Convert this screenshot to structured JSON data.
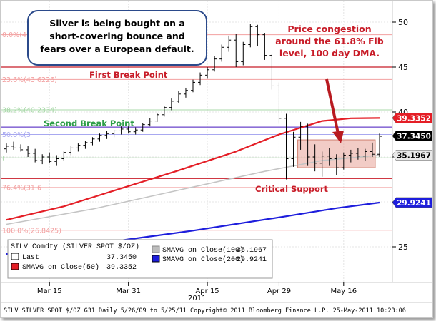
{
  "chart_data": {
    "type": "line",
    "title": "",
    "xlabel": "",
    "ylabel": "",
    "ylim": [
      20,
      52
    ],
    "y_ticks": [
      25,
      30,
      35,
      40,
      45,
      50
    ],
    "x_ticks": [
      "Mar 15",
      "Mar 31",
      "Apr 15",
      "Apr 29",
      "May 16"
    ],
    "x_year_label": "2011",
    "grid": true,
    "candles": [
      {
        "o": 35.9,
        "h": 36.5,
        "l": 35.5,
        "c": 36.2
      },
      {
        "o": 36.2,
        "h": 36.7,
        "l": 35.8,
        "c": 36.0
      },
      {
        "o": 36.0,
        "h": 36.4,
        "l": 35.6,
        "c": 35.8
      },
      {
        "o": 35.8,
        "h": 36.2,
        "l": 35.0,
        "c": 35.4
      },
      {
        "o": 35.4,
        "h": 35.9,
        "l": 34.4,
        "c": 34.6
      },
      {
        "o": 34.6,
        "h": 35.3,
        "l": 34.2,
        "c": 35.0
      },
      {
        "o": 35.0,
        "h": 35.5,
        "l": 34.3,
        "c": 34.5
      },
      {
        "o": 34.5,
        "h": 35.2,
        "l": 34.0,
        "c": 34.8
      },
      {
        "o": 34.8,
        "h": 35.6,
        "l": 34.6,
        "c": 35.5
      },
      {
        "o": 35.5,
        "h": 36.2,
        "l": 35.2,
        "c": 36.0
      },
      {
        "o": 36.0,
        "h": 36.5,
        "l": 35.6,
        "c": 36.3
      },
      {
        "o": 36.3,
        "h": 36.8,
        "l": 35.9,
        "c": 36.6
      },
      {
        "o": 36.6,
        "h": 37.2,
        "l": 36.3,
        "c": 37.0
      },
      {
        "o": 37.0,
        "h": 37.6,
        "l": 36.7,
        "c": 37.4
      },
      {
        "o": 37.4,
        "h": 37.9,
        "l": 37.0,
        "c": 37.6
      },
      {
        "o": 37.6,
        "h": 38.0,
        "l": 37.2,
        "c": 37.9
      },
      {
        "o": 37.9,
        "h": 38.4,
        "l": 37.5,
        "c": 38.1
      },
      {
        "o": 38.1,
        "h": 38.4,
        "l": 37.6,
        "c": 37.8
      },
      {
        "o": 37.8,
        "h": 38.3,
        "l": 37.5,
        "c": 38.0
      },
      {
        "o": 38.0,
        "h": 38.8,
        "l": 37.8,
        "c": 38.6
      },
      {
        "o": 38.6,
        "h": 39.3,
        "l": 38.4,
        "c": 39.0
      },
      {
        "o": 39.0,
        "h": 39.9,
        "l": 38.9,
        "c": 39.7
      },
      {
        "o": 39.7,
        "h": 40.7,
        "l": 39.5,
        "c": 40.5
      },
      {
        "o": 40.5,
        "h": 41.5,
        "l": 40.2,
        "c": 41.2
      },
      {
        "o": 41.2,
        "h": 42.3,
        "l": 41.0,
        "c": 42.0
      },
      {
        "o": 42.0,
        "h": 42.7,
        "l": 41.6,
        "c": 42.4
      },
      {
        "o": 42.4,
        "h": 43.6,
        "l": 42.2,
        "c": 43.3
      },
      {
        "o": 43.3,
        "h": 44.4,
        "l": 43.0,
        "c": 44.1
      },
      {
        "o": 44.1,
        "h": 45.0,
        "l": 43.7,
        "c": 44.7
      },
      {
        "o": 44.7,
        "h": 46.2,
        "l": 44.5,
        "c": 45.9
      },
      {
        "o": 45.9,
        "h": 47.5,
        "l": 45.6,
        "c": 47.2
      },
      {
        "o": 47.2,
        "h": 48.5,
        "l": 46.7,
        "c": 48.0
      },
      {
        "o": 48.0,
        "h": 48.7,
        "l": 45.0,
        "c": 45.6
      },
      {
        "o": 45.6,
        "h": 47.8,
        "l": 45.2,
        "c": 47.5
      },
      {
        "o": 47.5,
        "h": 49.8,
        "l": 47.2,
        "c": 49.5
      },
      {
        "o": 49.5,
        "h": 49.7,
        "l": 47.3,
        "c": 48.6
      },
      {
        "o": 48.6,
        "h": 48.8,
        "l": 45.8,
        "c": 46.3
      },
      {
        "o": 46.3,
        "h": 46.5,
        "l": 42.5,
        "c": 42.9
      },
      {
        "o": 42.9,
        "h": 43.3,
        "l": 38.7,
        "c": 39.3
      },
      {
        "o": 39.3,
        "h": 39.8,
        "l": 32.5,
        "c": 34.8
      },
      {
        "o": 34.8,
        "h": 37.8,
        "l": 33.9,
        "c": 37.2
      },
      {
        "o": 37.2,
        "h": 38.9,
        "l": 35.8,
        "c": 38.4
      },
      {
        "o": 38.4,
        "h": 38.7,
        "l": 34.0,
        "c": 35.0
      },
      {
        "o": 35.0,
        "h": 36.4,
        "l": 33.4,
        "c": 34.3
      },
      {
        "o": 34.3,
        "h": 35.6,
        "l": 32.8,
        "c": 35.1
      },
      {
        "o": 35.1,
        "h": 36.0,
        "l": 34.0,
        "c": 34.8
      },
      {
        "o": 34.8,
        "h": 35.3,
        "l": 33.0,
        "c": 33.8
      },
      {
        "o": 33.8,
        "h": 35.5,
        "l": 33.6,
        "c": 35.2
      },
      {
        "o": 35.2,
        "h": 35.8,
        "l": 34.4,
        "c": 35.4
      },
      {
        "o": 35.4,
        "h": 36.0,
        "l": 34.7,
        "c": 35.1
      },
      {
        "o": 35.1,
        "h": 35.9,
        "l": 34.6,
        "c": 35.6
      },
      {
        "o": 35.6,
        "h": 36.6,
        "l": 35.0,
        "c": 35.3
      },
      {
        "o": 35.3,
        "h": 37.6,
        "l": 35.0,
        "c": 37.3
      }
    ],
    "sma50": [
      {
        "i": 0,
        "v": 28.0
      },
      {
        "i": 8,
        "v": 29.5
      },
      {
        "i": 16,
        "v": 31.5
      },
      {
        "i": 24,
        "v": 33.5
      },
      {
        "i": 32,
        "v": 35.6
      },
      {
        "i": 38,
        "v": 37.5
      },
      {
        "i": 44,
        "v": 39.0
      },
      {
        "i": 48,
        "v": 39.3
      },
      {
        "i": 52,
        "v": 39.3352
      }
    ],
    "sma100": [
      {
        "i": 0,
        "v": 27.5
      },
      {
        "i": 12,
        "v": 29.2
      },
      {
        "i": 24,
        "v": 31.3
      },
      {
        "i": 36,
        "v": 33.4
      },
      {
        "i": 44,
        "v": 34.6
      },
      {
        "i": 52,
        "v": 35.1967
      }
    ],
    "sma200": [
      {
        "i": 0,
        "v": 24.2
      },
      {
        "i": 13,
        "v": 25.4
      },
      {
        "i": 26,
        "v": 26.8
      },
      {
        "i": 39,
        "v": 28.4
      },
      {
        "i": 46,
        "v": 29.3
      },
      {
        "i": 52,
        "v": 29.9241
      }
    ],
    "fib_levels": [
      {
        "label": "0.0%(4",
        "value": 48.6,
        "color": "#f2a0a0"
      },
      {
        "label": "23.6%(43.6226)",
        "value": 43.6226,
        "color": "#f2a0a0"
      },
      {
        "label": "38.2%(40.2334)",
        "value": 40.2334,
        "color": "#a8d8a8"
      },
      {
        "label": "50.0%(3",
        "value": 37.5,
        "color": "#a8a8f0"
      },
      {
        "label": "(",
        "value": 34.9,
        "color": "#a8d8a8"
      },
      {
        "label": "76.4%(31.6",
        "value": 31.6,
        "color": "#f2a0a0"
      },
      {
        "label": "100.0%(26.8425)",
        "value": 26.8425,
        "color": "#f2a0a0"
      }
    ],
    "break_lines": [
      {
        "name": "first-break-line",
        "value": 45.0,
        "color": "#c81c28"
      },
      {
        "name": "second-break-line",
        "value": 38.3,
        "color": "#8c6fd6"
      },
      {
        "name": "critical-support-line",
        "value": 32.6,
        "color": "#c81c28"
      }
    ],
    "congestion_zone": {
      "x_start": 41,
      "x_end": 51,
      "y_low": 33.8,
      "y_high": 36.9
    },
    "price_tags": [
      {
        "value": 39.3352,
        "label": "39.3352",
        "bg": "#e41e26",
        "fg": "#ffffff"
      },
      {
        "value": 37.345,
        "label": "37.3450",
        "bg": "#000000",
        "fg": "#ffffff"
      },
      {
        "value": 35.1967,
        "label": "35.1967",
        "bg": "#e9e9e9",
        "fg": "#000000"
      },
      {
        "value": 29.9241,
        "label": "29.9241",
        "bg": "#1d1ddc",
        "fg": "#ffffff"
      }
    ],
    "annotations": {
      "callout": "Silver is being bought on a short-covering bounce and fears over a European default.",
      "congestion": "Price congestion around the 61.8% Fib level, 100 day DMA.",
      "first_break": "First Break Point",
      "second_break": "Second Break Point",
      "critical_support": "Critical Support"
    },
    "legend": {
      "title": "SILV Comdty (SILVER SPOT $/OZ)",
      "rows": [
        {
          "label": "Last",
          "value": "37.3450",
          "color": "#ffffff"
        },
        {
          "label": "SMAVG on Close(50)",
          "value": "39.3352",
          "color": "#e41e26"
        },
        {
          "label": "SMAVG on Close(100)",
          "value": "35.1967",
          "color": "#bdbdbd"
        },
        {
          "label": "SMAVG on Close(200)",
          "value": "29.9241",
          "color": "#1d1ddc"
        }
      ]
    },
    "footer": "SILV  SILVER SPOT $/OZ    G31  Daily  5/26/09 to 5/25/11 Copyright© 2011 Bloomberg Finance L.P. 25-May-2011 10:23:06"
  }
}
